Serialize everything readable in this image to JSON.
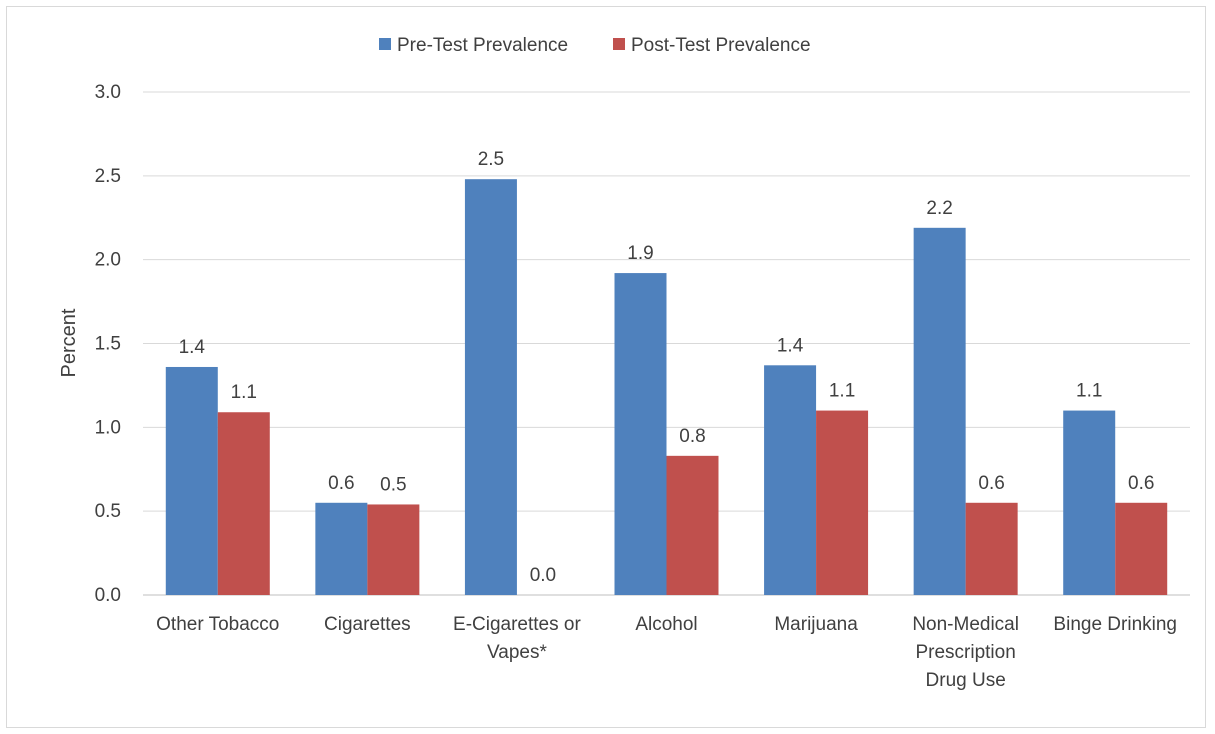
{
  "chart_data": {
    "type": "bar",
    "title": "",
    "xlabel": "",
    "ylabel": "Percent",
    "ylim": [
      0,
      3.0
    ],
    "yticks": [
      "0.0",
      "0.5",
      "1.0",
      "1.5",
      "2.0",
      "2.5",
      "3.0"
    ],
    "ytick_values": [
      0,
      0.5,
      1.0,
      1.5,
      2.0,
      2.5,
      3.0
    ],
    "grid": true,
    "legend_position": "top",
    "categories": [
      [
        "Other Tobacco"
      ],
      [
        "Cigarettes"
      ],
      [
        "E-Cigarettes or",
        "Vapes*"
      ],
      [
        "Alcohol"
      ],
      [
        "Marijuana"
      ],
      [
        "Non-Medical",
        "Prescription",
        "Drug Use"
      ],
      [
        "Binge Drinking"
      ]
    ],
    "series": [
      {
        "name": "Pre-Test Prevalence",
        "color": "#4f81bd",
        "values": [
          1.36,
          0.55,
          2.48,
          1.92,
          1.37,
          2.19,
          1.1
        ],
        "labels": [
          "1.4",
          "0.6",
          "2.5",
          "1.9",
          "1.4",
          "2.2",
          "1.1"
        ]
      },
      {
        "name": "Post-Test Prevalence",
        "color": "#c0504d",
        "values": [
          1.09,
          0.54,
          0.0,
          0.83,
          1.1,
          0.55,
          0.55
        ],
        "labels": [
          "1.1",
          "0.5",
          "0.0",
          "0.8",
          "1.1",
          "0.6",
          "0.6"
        ]
      }
    ]
  }
}
